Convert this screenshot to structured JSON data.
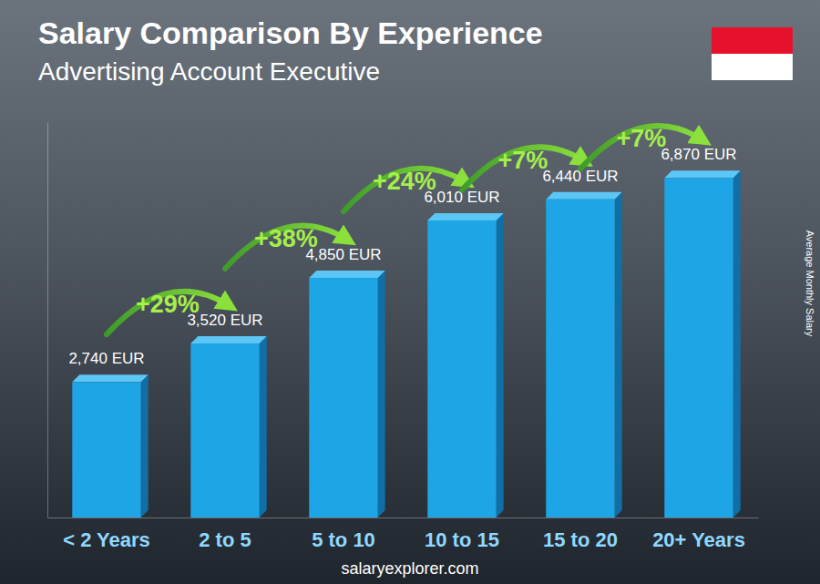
{
  "chart_data": {
    "type": "bar",
    "title": "Salary Comparison By Experience",
    "subtitle": "Advertising Account Executive",
    "y_label": "Average Monthly Salary",
    "source": "salaryexplorer.com",
    "categories": [
      "< 2 Years",
      "2 to 5",
      "5 to 10",
      "10 to 15",
      "15 to 20",
      "20+ Years"
    ],
    "values": [
      2740,
      3520,
      4850,
      6010,
      6440,
      6870
    ],
    "value_labels": [
      "2,740 EUR",
      "3,520 EUR",
      "4,850 EUR",
      "6,010 EUR",
      "6,440 EUR",
      "6,870 EUR"
    ],
    "annotations": [
      "+29%",
      "+38%",
      "+24%",
      "+7%",
      "+7%"
    ],
    "color": "#1ea5e6",
    "ylim": [
      0,
      8000
    ],
    "data_labels": true,
    "tick_labels": "x"
  }
}
